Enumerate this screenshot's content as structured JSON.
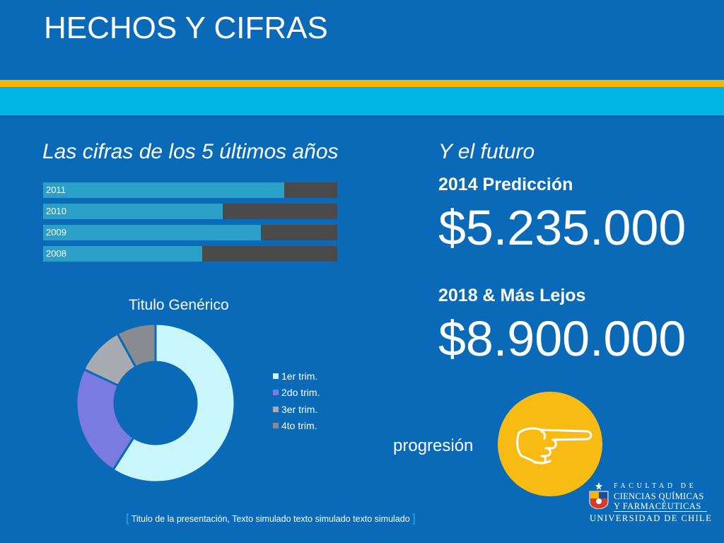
{
  "slide": {
    "title": "HECHOS Y CIFRAS",
    "left_subtitle": "Las cifras de los 5 últimos años",
    "right_subtitle": "Y el futuro",
    "footer": "Titulo de la presentación, Texto simulado texto simulado texto simulado",
    "progress_label": "progresión"
  },
  "predictions": [
    {
      "label": "2014 Predicción",
      "value": "$5.235.000"
    },
    {
      "label": "2018 & Más Lejos",
      "value": "$8.900.000"
    }
  ],
  "logo": {
    "line1": "FACULTAD DE",
    "line2": "CIENCIAS QUÍMICAS",
    "line3": "Y FARMACÉUTICAS",
    "line4": "UNIVERSIDAD DE CHILE"
  },
  "colors": {
    "background": "#0a6ab8",
    "gold": "#f5b800",
    "cyan": "#00b4e6",
    "bar_fill": "#2aa0c8",
    "bar_rest": "#4a4a4a"
  },
  "chart_data": [
    {
      "type": "bar",
      "orientation": "horizontal",
      "stacked": true,
      "categories": [
        "2011",
        "2010",
        "2009",
        "2008"
      ],
      "series": [
        {
          "values": [
            82,
            61,
            74,
            54
          ],
          "color": "#2aa0c8"
        },
        {
          "values": [
            18,
            39,
            26,
            46
          ],
          "color": "#4a4a4a"
        }
      ],
      "xlim": [
        0,
        100
      ],
      "grid": false
    },
    {
      "type": "pie",
      "donut": true,
      "title": "Titulo Genérico",
      "labels": [
        "1er trim.",
        "2do trim.",
        "3er trim.",
        "4to trim."
      ],
      "values": [
        59,
        23,
        10,
        8
      ],
      "colors": [
        "#c8f6fb",
        "#7a7ae0",
        "#a8acb2",
        "#888c90"
      ],
      "legend": "right"
    }
  ]
}
